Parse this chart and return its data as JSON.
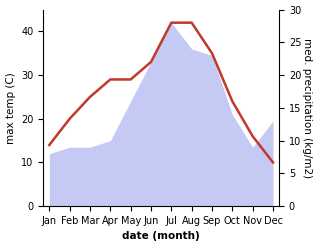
{
  "months": [
    "Jan",
    "Feb",
    "Mar",
    "Apr",
    "May",
    "Jun",
    "Jul",
    "Aug",
    "Sep",
    "Oct",
    "Nov",
    "Dec"
  ],
  "temp": [
    14,
    20,
    25,
    29,
    29,
    33,
    42,
    42,
    35,
    24,
    16,
    10
  ],
  "precip": [
    8,
    9,
    9,
    10,
    16,
    22,
    28,
    24,
    23,
    14,
    9,
    13
  ],
  "temp_color": "#c0392b",
  "precip_fill_color": "#c5caf5",
  "ylabel_left": "max temp (C)",
  "ylabel_right": "med. precipitation (kg/m2)",
  "xlabel": "date (month)",
  "ylim_left": [
    0,
    45
  ],
  "ylim_right": [
    0,
    30
  ],
  "yticks_left": [
    0,
    10,
    20,
    30,
    40
  ],
  "yticks_right": [
    0,
    5,
    10,
    15,
    20,
    25,
    30
  ],
  "background_color": "#ffffff",
  "temp_linewidth": 1.8,
  "label_fontsize": 7.5,
  "tick_fontsize": 7
}
